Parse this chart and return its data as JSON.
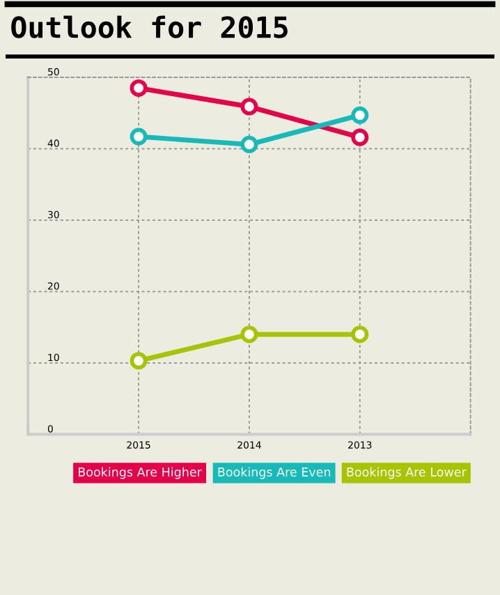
{
  "chart_data": {
    "type": "line",
    "title": "Outlook for 2015",
    "categories": [
      "2015",
      "2014",
      "2013"
    ],
    "series": [
      {
        "name": "Bookings Are Higher",
        "color": "#e5004a",
        "values": [
          48.5,
          45.9,
          41.6
        ]
      },
      {
        "name": "Bookings Are Even",
        "color": "#17b9b9",
        "values": [
          41.7,
          40.6,
          44.7
        ]
      },
      {
        "name": "Bookings Are Lower",
        "color": "#a8c300",
        "values": [
          10.3,
          14.0,
          14.0
        ]
      }
    ],
    "ylim": [
      0,
      50
    ],
    "yticks": [
      0,
      10,
      20,
      30,
      40,
      50
    ],
    "grid": true,
    "legend": "bottom",
    "marker": "circle",
    "line_style": "solid"
  }
}
